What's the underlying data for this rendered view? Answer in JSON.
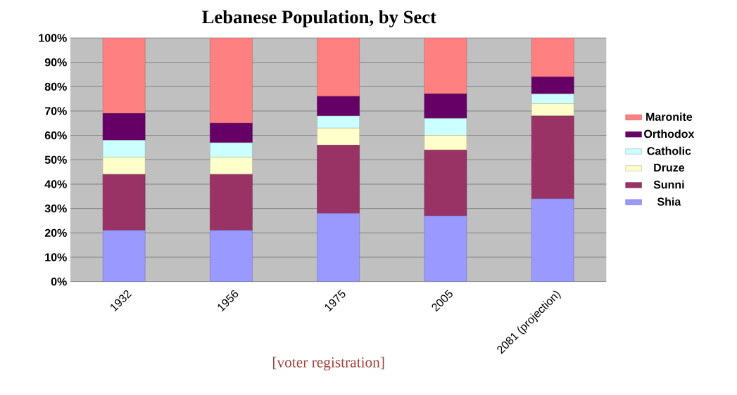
{
  "chart_data": {
    "type": "bar",
    "title": "Lebanese Population, by Sect",
    "stacked": true,
    "categories": [
      "1932",
      "1956",
      "1975",
      "2005",
      "2081 (projection)"
    ],
    "series": [
      {
        "name": "Shia",
        "color": "#9999ff",
        "values": [
          21,
          21,
          28,
          27,
          34
        ]
      },
      {
        "name": "Sunni",
        "color": "#993366",
        "values": [
          23,
          23,
          28,
          27,
          34
        ]
      },
      {
        "name": "Druze",
        "color": "#ffffcc",
        "values": [
          7,
          7,
          7,
          6,
          5
        ]
      },
      {
        "name": "Catholic",
        "color": "#ccffff",
        "values": [
          7,
          6,
          5,
          7,
          4
        ]
      },
      {
        "name": "Orthodox",
        "color": "#660066",
        "values": [
          11,
          8,
          8,
          10,
          7
        ]
      },
      {
        "name": "Maronite",
        "color": "#ff8080",
        "values": [
          31,
          35,
          24,
          23,
          16
        ]
      }
    ],
    "ylim": [
      0,
      100
    ],
    "yticks": [
      {
        "value": 0,
        "label": "0%"
      },
      {
        "value": 10,
        "label": "10%"
      },
      {
        "value": 20,
        "label": "20%"
      },
      {
        "value": 30,
        "label": "30%"
      },
      {
        "value": 40,
        "label": "40%"
      },
      {
        "value": 50,
        "label": "50%"
      },
      {
        "value": 60,
        "label": "60%"
      },
      {
        "value": 70,
        "label": "70%"
      },
      {
        "value": 80,
        "label": "80%"
      },
      {
        "value": 90,
        "label": "90%"
      },
      {
        "value": 100,
        "label": "100%"
      }
    ],
    "grid": "y",
    "legend": "right",
    "annotations": [
      "[voter registration]"
    ]
  }
}
